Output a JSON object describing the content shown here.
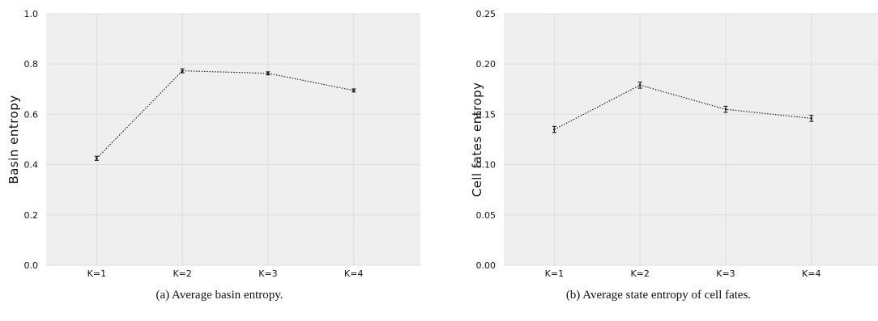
{
  "colors": {
    "plot_background": "#efefef",
    "grid": "#dddddd",
    "line": "#222222"
  },
  "chart_data": [
    {
      "type": "line",
      "ylabel": "Basin entropy",
      "xlabel": "",
      "categories": [
        "K=1",
        "K=2",
        "K=3",
        "K=4"
      ],
      "values": [
        0.425,
        0.773,
        0.763,
        0.695
      ],
      "errors": [
        0.008,
        0.008,
        0.006,
        0.006
      ],
      "ylim": [
        0.0,
        1.0
      ],
      "yticks": [
        "0.0",
        "0.2",
        "0.4",
        "0.6",
        "0.8",
        "1.0"
      ],
      "ytick_values": [
        0.0,
        0.2,
        0.4,
        0.6,
        0.8,
        1.0
      ],
      "grid": true,
      "line_style": "dotted",
      "caption": "(a)  Average basin entropy."
    },
    {
      "type": "line",
      "ylabel": "Cell fates entropy",
      "xlabel": "",
      "categories": [
        "K=1",
        "K=2",
        "K=3",
        "K=4"
      ],
      "values": [
        0.135,
        0.179,
        0.155,
        0.146
      ],
      "errors": [
        0.003,
        0.003,
        0.003,
        0.003
      ],
      "ylim": [
        0.0,
        0.25
      ],
      "yticks": [
        "0.00",
        "0.05",
        "0.10",
        "0.15",
        "0.20",
        "0.25"
      ],
      "ytick_values": [
        0.0,
        0.05,
        0.1,
        0.15,
        0.2,
        0.25
      ],
      "grid": true,
      "line_style": "dotted",
      "caption": "(b)  Average state entropy of cell fates."
    }
  ]
}
